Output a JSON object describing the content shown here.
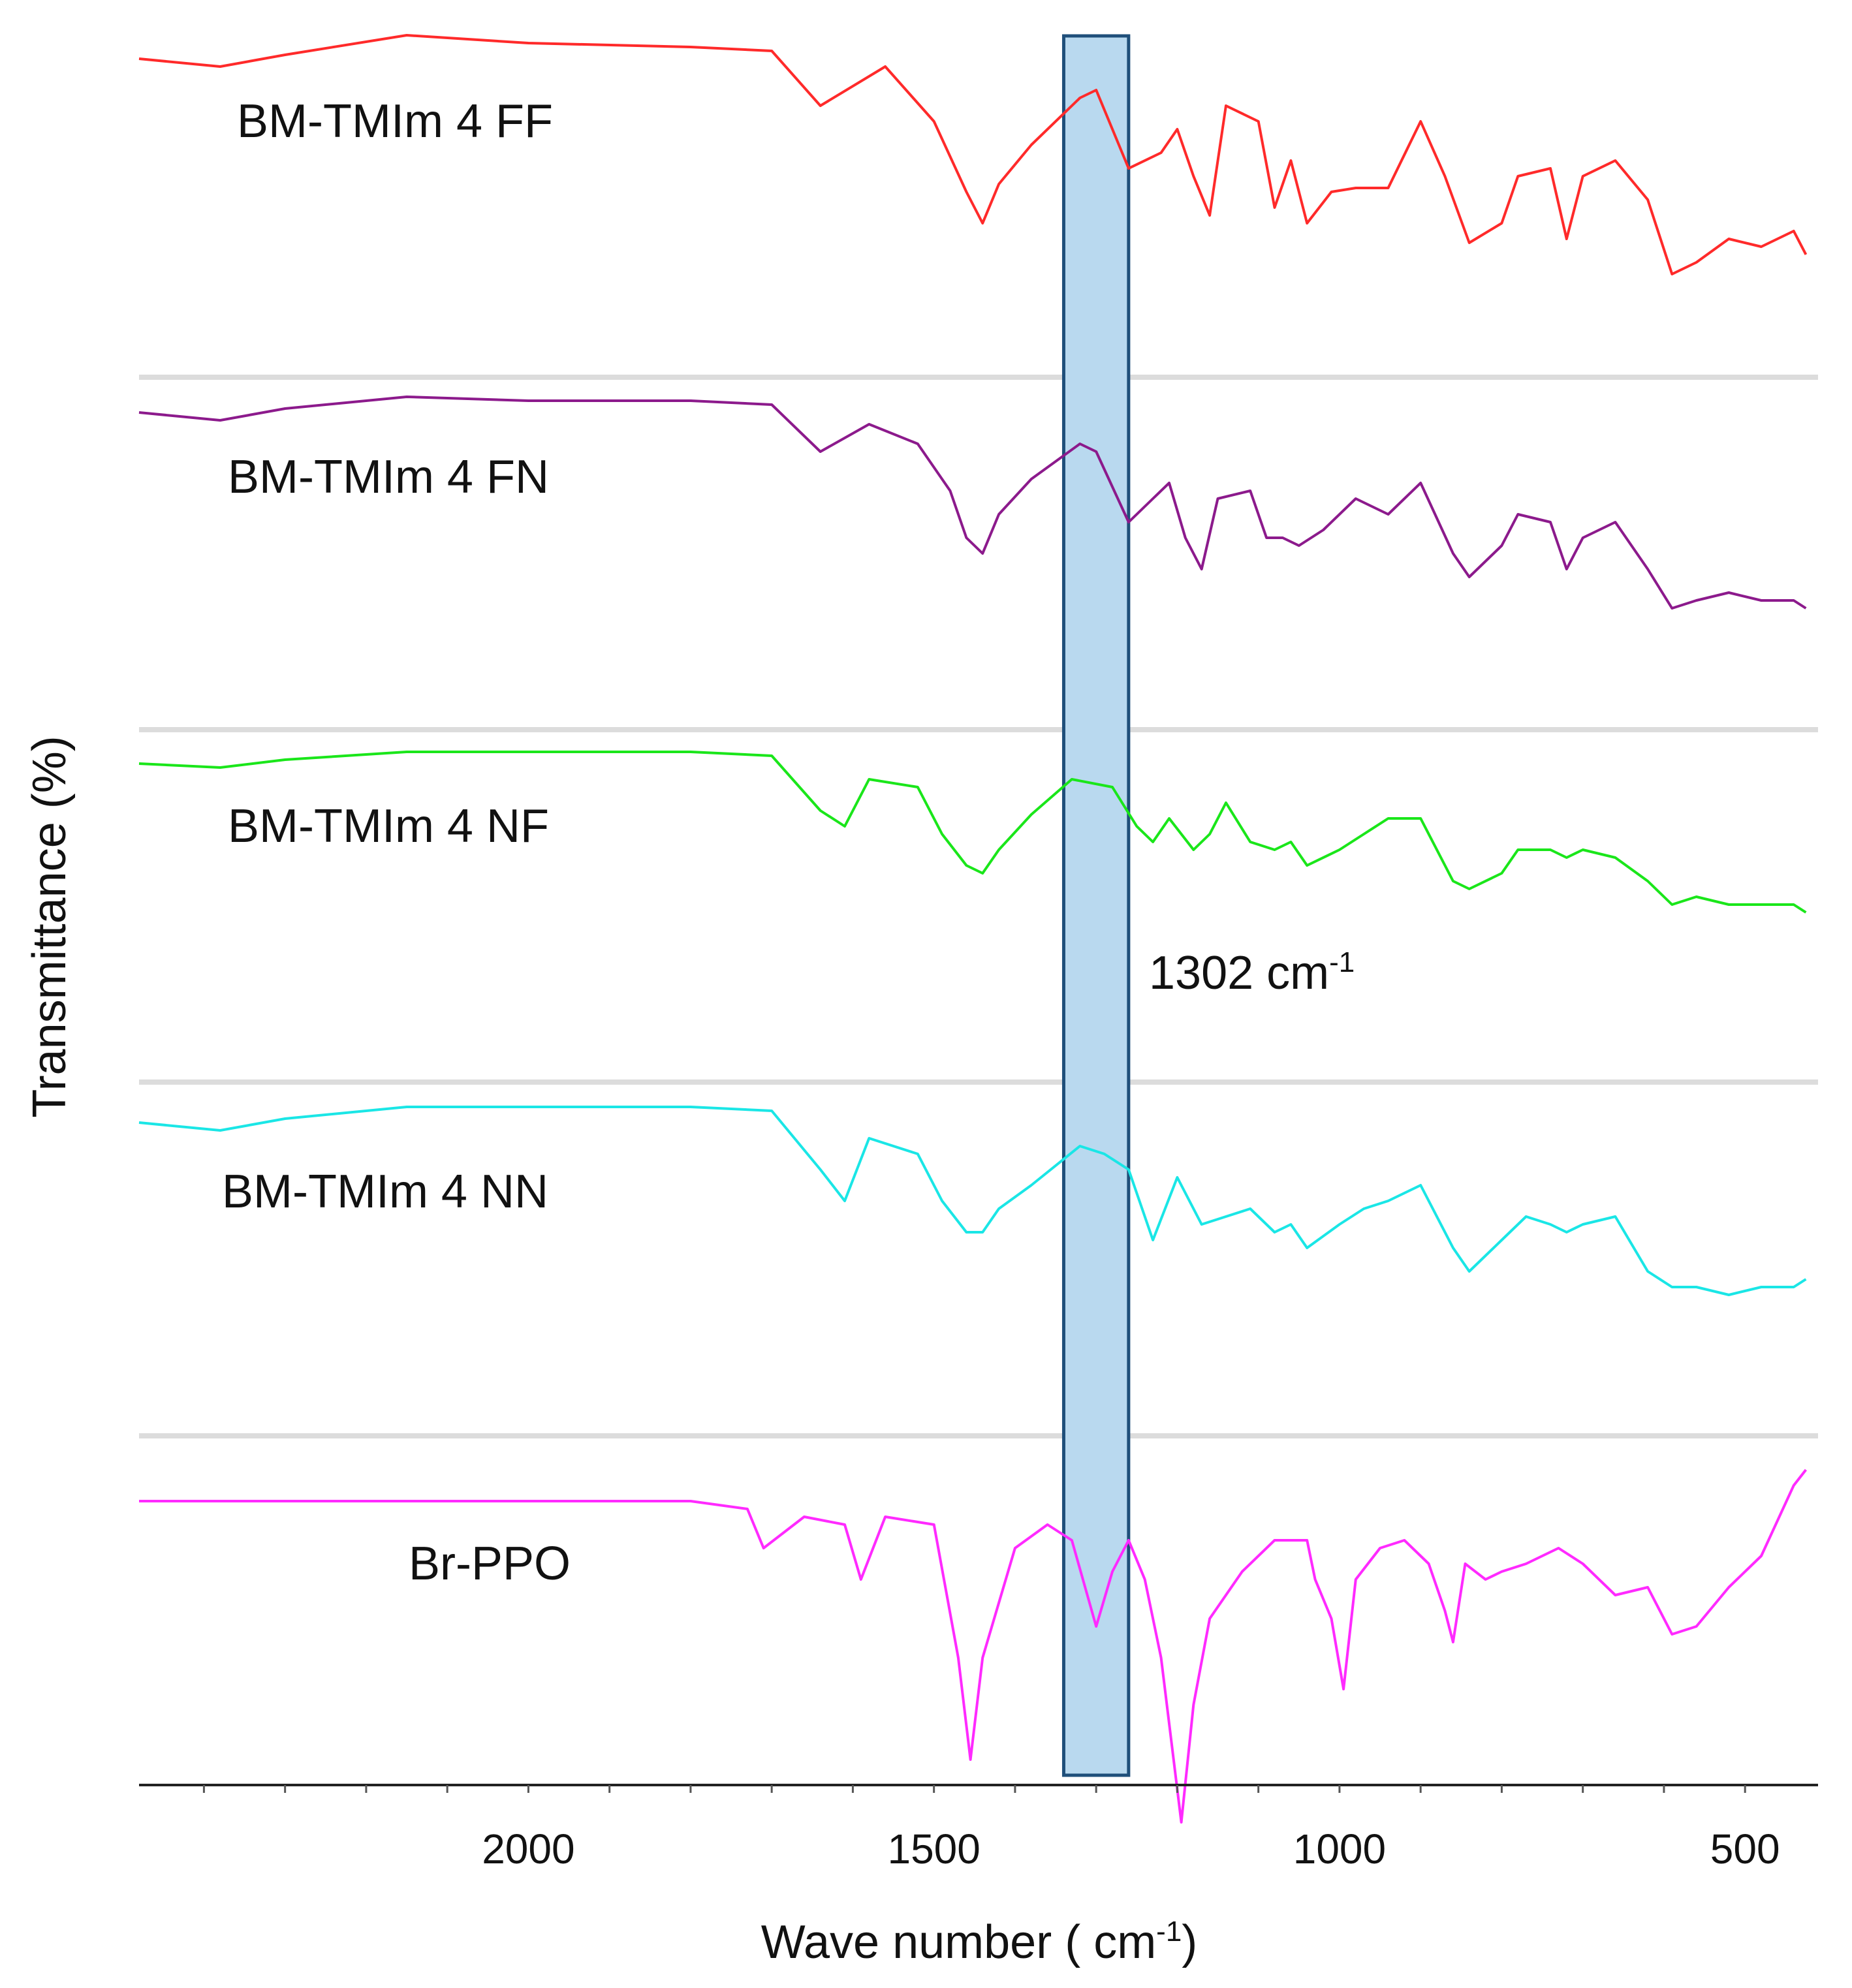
{
  "chart_data": {
    "type": "line",
    "xlabel": "Wave number ( cm",
    "xlabel_sup": "-1",
    "xlabel_close": ")",
    "ylabel": "Transmittance (%)",
    "xlim": [
      2480,
      410
    ],
    "x_reversed": true,
    "xticks": [
      2000,
      1500,
      1000,
      500
    ],
    "xtick_labels": [
      "2000",
      "1500",
      "1000",
      "500"
    ],
    "grid": false,
    "highlight_band": {
      "from": 1340,
      "to": 1260,
      "color": "#b9d9ef",
      "edge_color": "#1f4f7a",
      "label": "1302 cm",
      "label_sup": "-1"
    },
    "series": [
      {
        "name": "BM-TMIm 4 FF",
        "color": "#ff2a2a",
        "points": [
          [
            2480,
            0
          ],
          [
            2380,
            2
          ],
          [
            2300,
            -1
          ],
          [
            2150,
            -6
          ],
          [
            2000,
            -4
          ],
          [
            1800,
            -3
          ],
          [
            1700,
            -2
          ],
          [
            1640,
            12
          ],
          [
            1560,
            2
          ],
          [
            1500,
            16
          ],
          [
            1460,
            34
          ],
          [
            1440,
            42
          ],
          [
            1420,
            32
          ],
          [
            1380,
            22
          ],
          [
            1320,
            10
          ],
          [
            1300,
            8
          ],
          [
            1260,
            28
          ],
          [
            1220,
            24
          ],
          [
            1200,
            18
          ],
          [
            1180,
            30
          ],
          [
            1160,
            40
          ],
          [
            1140,
            12
          ],
          [
            1100,
            16
          ],
          [
            1080,
            38
          ],
          [
            1060,
            26
          ],
          [
            1040,
            42
          ],
          [
            1010,
            34
          ],
          [
            980,
            33
          ],
          [
            940,
            33
          ],
          [
            900,
            16
          ],
          [
            870,
            30
          ],
          [
            840,
            47
          ],
          [
            800,
            42
          ],
          [
            780,
            30
          ],
          [
            740,
            28
          ],
          [
            720,
            46
          ],
          [
            700,
            30
          ],
          [
            660,
            26
          ],
          [
            620,
            36
          ],
          [
            590,
            55
          ],
          [
            560,
            52
          ],
          [
            520,
            46
          ],
          [
            480,
            48
          ],
          [
            440,
            44
          ],
          [
            425,
            50
          ]
        ]
      },
      {
        "name": "BM-TMIm 4 FN",
        "color": "#8c1a8c",
        "points": [
          [
            2480,
            0
          ],
          [
            2380,
            2
          ],
          [
            2300,
            -1
          ],
          [
            2150,
            -4
          ],
          [
            2000,
            -3
          ],
          [
            1800,
            -3
          ],
          [
            1700,
            -2
          ],
          [
            1640,
            10
          ],
          [
            1580,
            3
          ],
          [
            1520,
            8
          ],
          [
            1480,
            20
          ],
          [
            1460,
            32
          ],
          [
            1440,
            36
          ],
          [
            1420,
            26
          ],
          [
            1380,
            17
          ],
          [
            1320,
            8
          ],
          [
            1300,
            10
          ],
          [
            1260,
            28
          ],
          [
            1230,
            22
          ],
          [
            1210,
            18
          ],
          [
            1190,
            32
          ],
          [
            1170,
            40
          ],
          [
            1150,
            22
          ],
          [
            1110,
            20
          ],
          [
            1090,
            32
          ],
          [
            1070,
            32
          ],
          [
            1050,
            34
          ],
          [
            1020,
            30
          ],
          [
            980,
            22
          ],
          [
            940,
            26
          ],
          [
            900,
            18
          ],
          [
            860,
            36
          ],
          [
            840,
            42
          ],
          [
            800,
            34
          ],
          [
            780,
            26
          ],
          [
            740,
            28
          ],
          [
            720,
            40
          ],
          [
            700,
            32
          ],
          [
            660,
            28
          ],
          [
            620,
            40
          ],
          [
            590,
            50
          ],
          [
            560,
            48
          ],
          [
            520,
            46
          ],
          [
            480,
            48
          ],
          [
            440,
            48
          ],
          [
            425,
            50
          ]
        ]
      },
      {
        "name": "BM-TMIm 4 NF",
        "color": "#1ae61a",
        "points": [
          [
            2480,
            0
          ],
          [
            2380,
            1
          ],
          [
            2300,
            -1
          ],
          [
            2150,
            -3
          ],
          [
            2000,
            -3
          ],
          [
            1800,
            -3
          ],
          [
            1700,
            -2
          ],
          [
            1640,
            12
          ],
          [
            1610,
            16
          ],
          [
            1580,
            4
          ],
          [
            1520,
            6
          ],
          [
            1490,
            18
          ],
          [
            1460,
            26
          ],
          [
            1440,
            28
          ],
          [
            1420,
            22
          ],
          [
            1380,
            13
          ],
          [
            1330,
            4
          ],
          [
            1280,
            6
          ],
          [
            1250,
            16
          ],
          [
            1230,
            20
          ],
          [
            1210,
            14
          ],
          [
            1180,
            22
          ],
          [
            1160,
            18
          ],
          [
            1140,
            10
          ],
          [
            1110,
            20
          ],
          [
            1080,
            22
          ],
          [
            1060,
            20
          ],
          [
            1040,
            26
          ],
          [
            1000,
            22
          ],
          [
            970,
            18
          ],
          [
            940,
            14
          ],
          [
            900,
            14
          ],
          [
            860,
            30
          ],
          [
            840,
            32
          ],
          [
            800,
            28
          ],
          [
            780,
            22
          ],
          [
            740,
            22
          ],
          [
            720,
            24
          ],
          [
            700,
            22
          ],
          [
            660,
            24
          ],
          [
            620,
            30
          ],
          [
            590,
            36
          ],
          [
            560,
            34
          ],
          [
            520,
            36
          ],
          [
            480,
            36
          ],
          [
            440,
            36
          ],
          [
            425,
            38
          ]
        ]
      },
      {
        "name": "BM-TMIm 4 NN",
        "color": "#1ae6e6",
        "points": [
          [
            2480,
            0
          ],
          [
            2380,
            2
          ],
          [
            2300,
            -1
          ],
          [
            2150,
            -4
          ],
          [
            2000,
            -4
          ],
          [
            1800,
            -4
          ],
          [
            1700,
            -3
          ],
          [
            1640,
            12
          ],
          [
            1610,
            20
          ],
          [
            1580,
            4
          ],
          [
            1520,
            8
          ],
          [
            1490,
            20
          ],
          [
            1460,
            28
          ],
          [
            1440,
            28
          ],
          [
            1420,
            22
          ],
          [
            1380,
            16
          ],
          [
            1320,
            6
          ],
          [
            1290,
            8
          ],
          [
            1260,
            12
          ],
          [
            1230,
            30
          ],
          [
            1200,
            14
          ],
          [
            1170,
            26
          ],
          [
            1140,
            24
          ],
          [
            1110,
            22
          ],
          [
            1080,
            28
          ],
          [
            1060,
            26
          ],
          [
            1040,
            32
          ],
          [
            1000,
            26
          ],
          [
            970,
            22
          ],
          [
            940,
            20
          ],
          [
            900,
            16
          ],
          [
            860,
            32
          ],
          [
            840,
            38
          ],
          [
            800,
            30
          ],
          [
            770,
            24
          ],
          [
            740,
            26
          ],
          [
            720,
            28
          ],
          [
            700,
            26
          ],
          [
            660,
            24
          ],
          [
            620,
            38
          ],
          [
            590,
            42
          ],
          [
            560,
            42
          ],
          [
            520,
            44
          ],
          [
            480,
            42
          ],
          [
            440,
            42
          ],
          [
            425,
            40
          ]
        ]
      },
      {
        "name": "Br-PPO",
        "color": "#ff2aff",
        "points": [
          [
            2480,
            0
          ],
          [
            2380,
            0
          ],
          [
            2300,
            0
          ],
          [
            2150,
            0
          ],
          [
            2000,
            0
          ],
          [
            1800,
            0
          ],
          [
            1730,
            2
          ],
          [
            1710,
            12
          ],
          [
            1660,
            4
          ],
          [
            1610,
            6
          ],
          [
            1590,
            20
          ],
          [
            1560,
            4
          ],
          [
            1500,
            6
          ],
          [
            1470,
            40
          ],
          [
            1455,
            66
          ],
          [
            1440,
            40
          ],
          [
            1400,
            12
          ],
          [
            1360,
            6
          ],
          [
            1330,
            10
          ],
          [
            1300,
            32
          ],
          [
            1280,
            18
          ],
          [
            1260,
            10
          ],
          [
            1240,
            20
          ],
          [
            1220,
            40
          ],
          [
            1195,
            82
          ],
          [
            1180,
            52
          ],
          [
            1160,
            30
          ],
          [
            1120,
            18
          ],
          [
            1080,
            10
          ],
          [
            1040,
            10
          ],
          [
            1030,
            20
          ],
          [
            1010,
            30
          ],
          [
            995,
            48
          ],
          [
            980,
            20
          ],
          [
            950,
            12
          ],
          [
            920,
            10
          ],
          [
            890,
            16
          ],
          [
            870,
            28
          ],
          [
            860,
            36
          ],
          [
            845,
            16
          ],
          [
            820,
            20
          ],
          [
            800,
            18
          ],
          [
            770,
            16
          ],
          [
            730,
            12
          ],
          [
            700,
            16
          ],
          [
            660,
            24
          ],
          [
            620,
            22
          ],
          [
            590,
            34
          ],
          [
            560,
            32
          ],
          [
            520,
            22
          ],
          [
            480,
            14
          ],
          [
            440,
            -4
          ],
          [
            425,
            -8
          ]
        ]
      }
    ]
  }
}
